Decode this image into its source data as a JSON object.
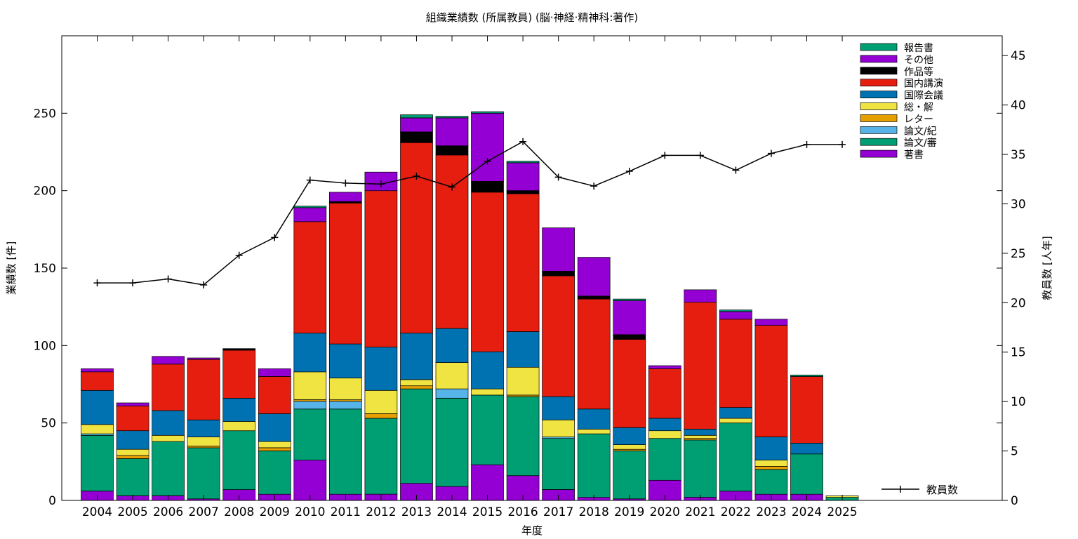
{
  "chart_data": {
    "type": "bar",
    "stacked": true,
    "title": "組織業績数 (所属教員) (脳·神経·精神科:著作)",
    "xlabel": "年度",
    "ylabel": "業績数 [件]",
    "y2label": "教員数 [人年]",
    "ylim": [
      0,
      300
    ],
    "y2lim": [
      0,
      47
    ],
    "yticks": [
      0,
      50,
      100,
      150,
      200,
      250
    ],
    "y2ticks": [
      0,
      5,
      10,
      15,
      20,
      25,
      30,
      35,
      40,
      45
    ],
    "grid": false,
    "legend_position": "top-right",
    "categories": [
      "2004",
      "2005",
      "2006",
      "2007",
      "2008",
      "2009",
      "2010",
      "2011",
      "2012",
      "2013",
      "2014",
      "2015",
      "2016",
      "2017",
      "2018",
      "2019",
      "2020",
      "2021",
      "2022",
      "2023",
      "2024",
      "2025"
    ],
    "series": [
      {
        "name": "著書",
        "color": "#9400d3",
        "values": [
          6,
          3,
          3,
          1,
          7,
          4,
          26,
          4,
          4,
          11,
          9,
          23,
          16,
          7,
          2,
          1,
          13,
          2,
          6,
          4,
          4,
          0
        ]
      },
      {
        "name": "論文/審",
        "color": "#009e73",
        "values": [
          36,
          24,
          35,
          33,
          38,
          28,
          33,
          55,
          49,
          61,
          57,
          45,
          51,
          33,
          41,
          31,
          27,
          37,
          44,
          16,
          26,
          2
        ]
      },
      {
        "name": "論文/紀",
        "color": "#56b4e9",
        "values": [
          1,
          0,
          0,
          0,
          0,
          0,
          5,
          5,
          0,
          0,
          6,
          0,
          0,
          1,
          0,
          0,
          0,
          0,
          0,
          0,
          0,
          0
        ]
      },
      {
        "name": "レター",
        "color": "#e69f00",
        "values": [
          0,
          2,
          0,
          1,
          0,
          2,
          1,
          1,
          3,
          2,
          0,
          0,
          1,
          0,
          0,
          1,
          0,
          1,
          0,
          2,
          0,
          0
        ]
      },
      {
        "name": "総・解",
        "color": "#f0e442",
        "values": [
          6,
          4,
          4,
          6,
          6,
          4,
          18,
          14,
          15,
          4,
          17,
          4,
          18,
          11,
          3,
          3,
          5,
          2,
          3,
          4,
          0,
          1
        ]
      },
      {
        "name": "国際会議",
        "color": "#0072b2",
        "values": [
          22,
          12,
          16,
          11,
          15,
          18,
          25,
          22,
          28,
          30,
          22,
          24,
          23,
          15,
          13,
          11,
          8,
          4,
          7,
          15,
          7,
          0
        ]
      },
      {
        "name": "国内講演",
        "color": "#e51e10",
        "values": [
          12,
          16,
          30,
          39,
          31,
          24,
          72,
          91,
          101,
          123,
          112,
          103,
          89,
          78,
          71,
          57,
          32,
          82,
          57,
          72,
          43,
          0
        ]
      },
      {
        "name": "作品等",
        "color": "#000000",
        "values": [
          0,
          0,
          0,
          0,
          1,
          0,
          0,
          1,
          0,
          7,
          6,
          7,
          2,
          3,
          2,
          3,
          0,
          0,
          0,
          0,
          0,
          0
        ]
      },
      {
        "name": "その他",
        "color": "#9400d3",
        "values": [
          2,
          2,
          5,
          1,
          0,
          5,
          9,
          6,
          12,
          9,
          18,
          44,
          18,
          28,
          25,
          22,
          2,
          8,
          5,
          4,
          0,
          0
        ]
      },
      {
        "name": "報告書",
        "color": "#009e73",
        "values": [
          0,
          0,
          0,
          0,
          0,
          0,
          1,
          0,
          0,
          2,
          1,
          1,
          1,
          0,
          0,
          1,
          0,
          0,
          1,
          0,
          1,
          0
        ]
      }
    ],
    "line_series": {
      "name": "教員数",
      "axis": "y2",
      "color": "#000000",
      "values": [
        22,
        22,
        22.4,
        21.8,
        24.8,
        26.6,
        32.4,
        32.1,
        32,
        32.8,
        31.7,
        34.3,
        36.3,
        32.7,
        31.8,
        33.3,
        34.9,
        34.9,
        33.4,
        35.1,
        36,
        36
      ]
    }
  }
}
